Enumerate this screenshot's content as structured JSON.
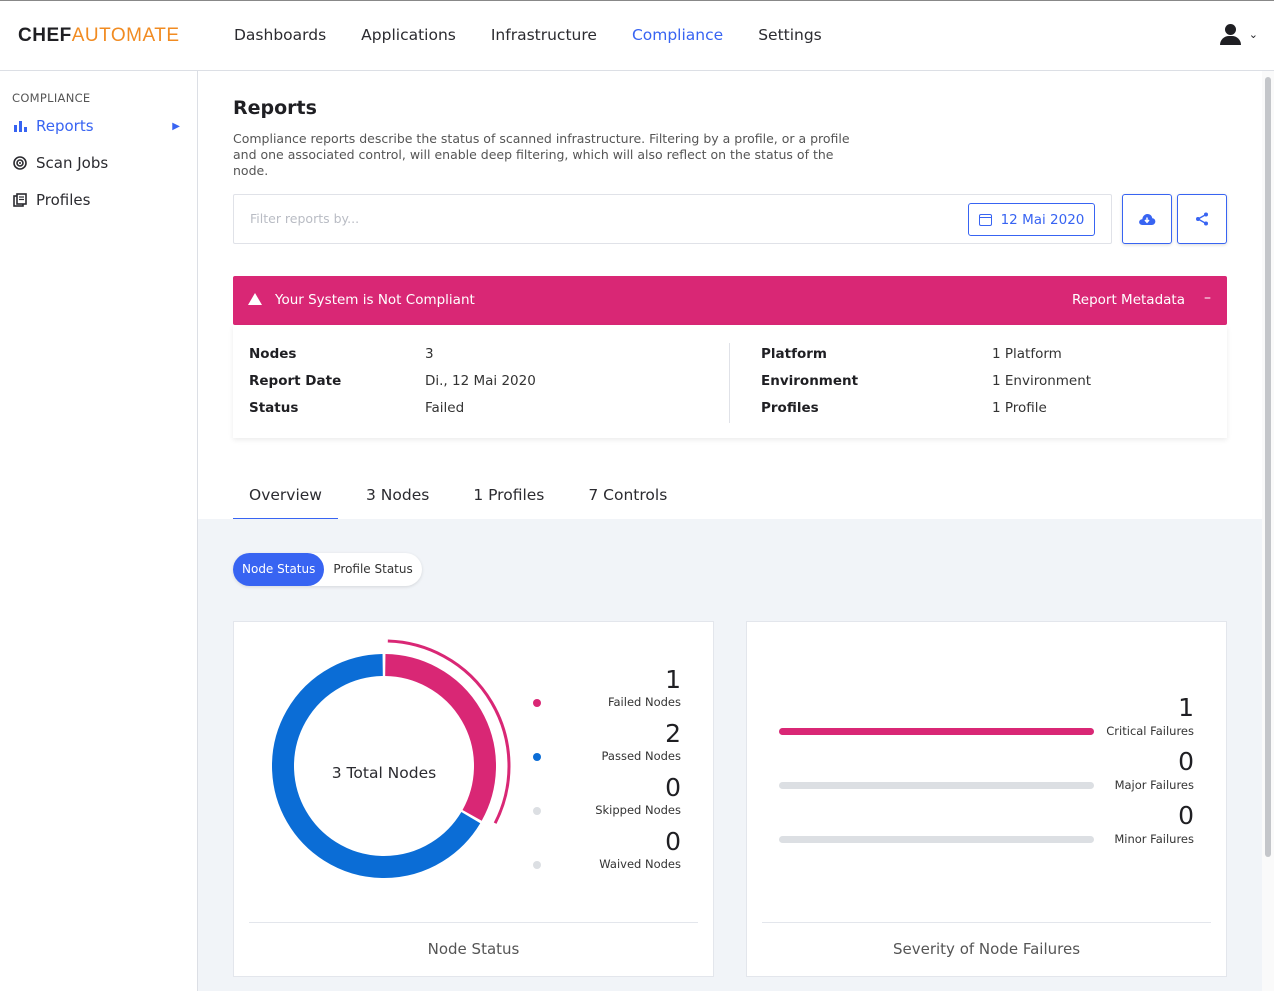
{
  "app": {
    "logo_part1": "CHEF",
    "logo_part2": "AUTOMATE"
  },
  "nav": {
    "items": [
      {
        "label": "Dashboards"
      },
      {
        "label": "Applications"
      },
      {
        "label": "Infrastructure"
      },
      {
        "label": "Compliance",
        "active": true
      },
      {
        "label": "Settings"
      }
    ],
    "user_icon": "user-icon"
  },
  "sidebar": {
    "heading": "COMPLIANCE",
    "items": [
      {
        "label": "Reports",
        "icon": "bar-chart-icon",
        "active": true
      },
      {
        "label": "Scan Jobs",
        "icon": "radar-icon"
      },
      {
        "label": "Profiles",
        "icon": "profiles-icon"
      }
    ]
  },
  "page": {
    "title": "Reports",
    "description": "Compliance reports describe the status of scanned infrastructure. Filtering by a profile, or a profile and one associated control, will enable deep filtering, which will also reflect on the status of the node."
  },
  "filter": {
    "placeholder": "Filter reports by...",
    "date": "12 Mai 2020"
  },
  "banner": {
    "text": "Your System is Not Compliant",
    "meta_label": "Report Metadata",
    "toggle": "–",
    "color": "#d92775"
  },
  "metadata": {
    "left": [
      {
        "key": "Nodes",
        "value": "3"
      },
      {
        "key": "Report Date",
        "value": "Di., 12 Mai 2020"
      },
      {
        "key": "Status",
        "value": "Failed"
      }
    ],
    "right": [
      {
        "key": "Platform",
        "value": "1 Platform"
      },
      {
        "key": "Environment",
        "value": "1 Environment"
      },
      {
        "key": "Profiles",
        "value": "1 Profile"
      }
    ]
  },
  "tabs": [
    {
      "label": "Overview",
      "active": true
    },
    {
      "label": "3 Nodes"
    },
    {
      "label": "1 Profiles"
    },
    {
      "label": "7 Controls"
    }
  ],
  "status_toggle": {
    "node": "Node Status",
    "profile": "Profile Status",
    "active": "node"
  },
  "node_status": {
    "center_label": "3 Total Nodes",
    "caption": "Node Status",
    "legend": [
      {
        "value": "1",
        "label": "Failed Nodes",
        "color": "#d92775"
      },
      {
        "value": "2",
        "label": "Passed Nodes",
        "color": "#0b6dd6"
      },
      {
        "value": "0",
        "label": "Skipped Nodes",
        "color": "#dcdfe3"
      },
      {
        "value": "0",
        "label": "Waived Nodes",
        "color": "#dcdfe3"
      }
    ],
    "failed": 1,
    "passed": 2,
    "total": 3
  },
  "severity": {
    "caption": "Severity of Node Failures",
    "items": [
      {
        "value": "1",
        "label": "Critical Failures",
        "fraction": 1.0,
        "color": "#d92775"
      },
      {
        "value": "0",
        "label": "Major Failures",
        "fraction": 0,
        "color": "#dcdfe3"
      },
      {
        "value": "0",
        "label": "Minor Failures",
        "fraction": 0,
        "color": "#dcdfe3"
      }
    ]
  },
  "colors": {
    "accent": "#3864f2",
    "failed": "#d92775",
    "passed": "#0b6dd6",
    "neutral": "#dcdfe3"
  }
}
